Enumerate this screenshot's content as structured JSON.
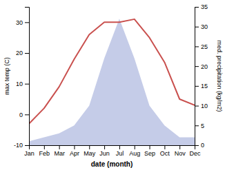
{
  "chart_data": {
    "type": "line",
    "categories": [
      "Jan",
      "Feb",
      "Mar",
      "Apr",
      "May",
      "Jun",
      "Jul",
      "Aug",
      "Sep",
      "Oct",
      "Nov",
      "Dec"
    ],
    "xlabel": "date (month)",
    "ylabel": "max temp (C)",
    "y2label": "med. precipitation (kg/m2)",
    "ylim": [
      -10,
      35
    ],
    "yticks": [
      -10,
      0,
      10,
      20,
      30
    ],
    "y2lim": [
      0,
      35
    ],
    "y2ticks": [
      0,
      5,
      10,
      15,
      20,
      25,
      30,
      35
    ],
    "grid": false,
    "series": [
      {
        "type": "area",
        "color": "#c5cce8",
        "axis": "y2",
        "values": [
          1,
          2,
          3,
          5,
          10,
          22,
          32,
          22,
          10,
          5,
          2,
          2
        ]
      },
      {
        "type": "line",
        "color": "#c9504e",
        "values": [
          -3,
          2,
          9,
          18,
          26,
          30,
          30,
          31,
          25,
          17,
          5,
          3
        ]
      }
    ]
  }
}
